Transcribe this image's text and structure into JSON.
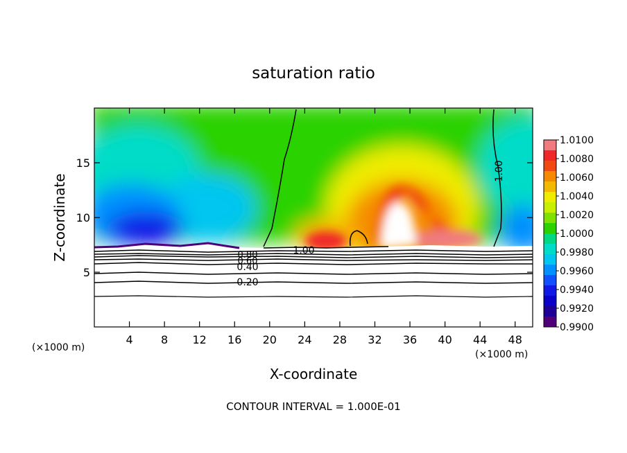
{
  "chart_data": {
    "type": "heatmap",
    "title": "saturation ratio",
    "xlabel": "X-coordinate",
    "ylabel": "Z-coordinate",
    "x_unit_left": "(×1000 m)",
    "x_unit_right": "(×1000 m)",
    "xlim": [
      0,
      50
    ],
    "ylim": [
      0,
      20
    ],
    "x_ticks": [
      4,
      8,
      12,
      16,
      20,
      24,
      28,
      32,
      36,
      40,
      44,
      48
    ],
    "y_ticks": [
      5,
      10,
      15
    ],
    "colorbar": {
      "levels": [
        "1.0100",
        "1.0080",
        "1.0060",
        "1.0040",
        "1.0020",
        "1.0000",
        "0.9980",
        "0.9960",
        "0.9940",
        "0.9920",
        "0.9900"
      ],
      "colors": [
        "#f07a80",
        "#f0282a",
        "#f04a10",
        "#f58a00",
        "#f5b800",
        "#f0ec00",
        "#c8ee00",
        "#7fe100",
        "#2bd200",
        "#00d882",
        "#00dcc8",
        "#00c6f0",
        "#0090ff",
        "#1050ff",
        "#1018e6",
        "#0a00c8",
        "#1e0096",
        "#500078"
      ]
    },
    "contour_labels": [
      "1.00",
      "1.00",
      "0.80",
      "0.60",
      "0.40",
      "0.20"
    ],
    "footer": "CONTOUR INTERVAL = 1.000E-01"
  }
}
